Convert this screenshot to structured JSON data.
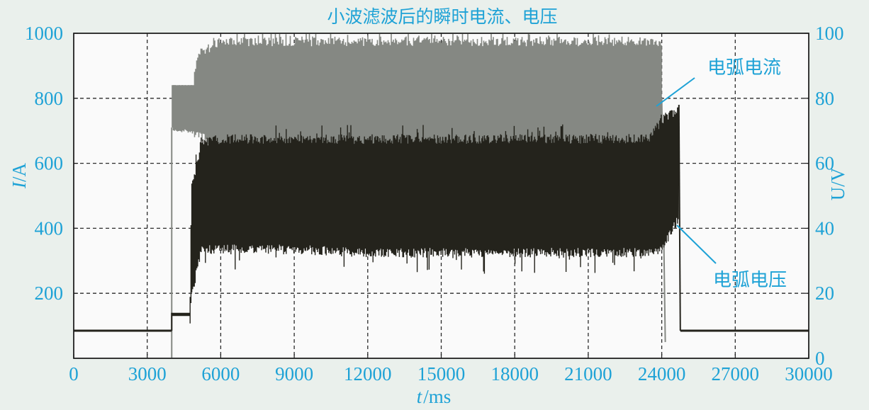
{
  "chart_data": {
    "type": "line",
    "title": "小波滤波后的瞬时电流、电压",
    "xlabel": "t/ms",
    "xlabel_var": "t",
    "xlabel_unit": "ms",
    "ylabel_left": "I/A",
    "ylabel_left_var": "I",
    "ylabel_left_unit": "A",
    "ylabel_right": "U/V",
    "xlim": [
      0,
      30000
    ],
    "ylim_left": [
      0,
      1000
    ],
    "ylim_right": [
      0,
      100
    ],
    "x_ticks": [
      "0",
      "3000",
      "6000",
      "9000",
      "12000",
      "15000",
      "18000",
      "21000",
      "24000",
      "27000",
      "30000"
    ],
    "y_left_ticks": [
      "200",
      "400",
      "600",
      "800",
      "1000"
    ],
    "y_right_ticks": [
      "0",
      "20",
      "40",
      "60",
      "80",
      "100"
    ],
    "grid": true,
    "series": [
      {
        "name": "电弧电流",
        "axis": "left",
        "color": "#858883",
        "envelope": {
          "x": [
            4000,
            4050,
            4900,
            5100,
            6000,
            9000,
            12000,
            15000,
            18000,
            21000,
            24000
          ],
          "low": [
            710,
            710,
            700,
            700,
            660,
            650,
            650,
            650,
            650,
            650,
            650
          ],
          "high": [
            840,
            840,
            840,
            920,
            960,
            960,
            960,
            960,
            960,
            960,
            960
          ]
        }
      },
      {
        "name": "电弧电压",
        "axis": "right",
        "color": "#24231c",
        "envelope": {
          "x": [
            4000,
            4750,
            4800,
            5200,
            6000,
            9000,
            12000,
            15000,
            18000,
            21000,
            23500,
            24000,
            24700
          ],
          "low": [
            13,
            13,
            20,
            35,
            35,
            35,
            34,
            34,
            34,
            34,
            34,
            35,
            45
          ],
          "high": [
            14,
            14,
            50,
            65,
            66,
            66,
            66,
            66,
            66,
            66,
            66,
            72,
            75
          ]
        },
        "idle_value": 8.5
      }
    ]
  }
}
